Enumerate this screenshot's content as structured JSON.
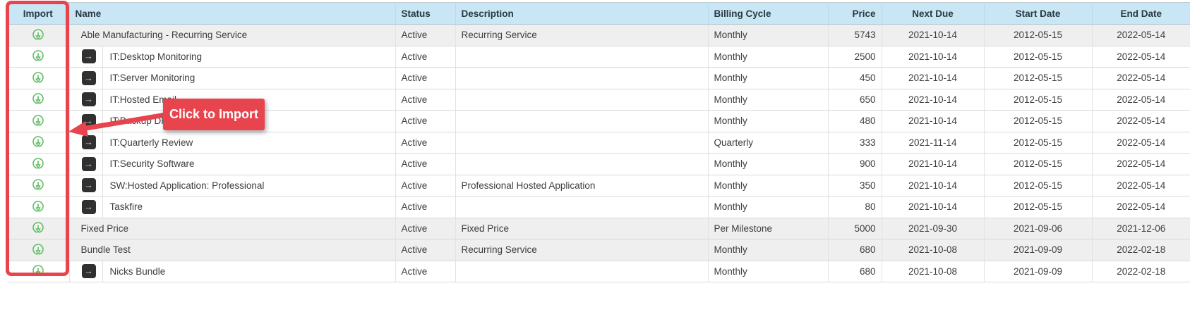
{
  "annotation": {
    "tooltip_label": "Click to Import"
  },
  "colors": {
    "accent_red": "#e8444e",
    "import_icon_green": "#5cbb60",
    "header_blue": "#c8e6f4",
    "parent_row_gray": "#efefef"
  },
  "icons": {
    "import_icon": "download-circle-icon",
    "child_row_icon": "arrow-right-square-icon"
  },
  "table": {
    "columns": [
      {
        "key": "import",
        "label": "Import",
        "align": "ac"
      },
      {
        "key": "name",
        "label": "Name",
        "align": "al"
      },
      {
        "key": "status",
        "label": "Status",
        "align": "al"
      },
      {
        "key": "description",
        "label": "Description",
        "align": "al"
      },
      {
        "key": "billing_cycle",
        "label": "Billing Cycle",
        "align": "al"
      },
      {
        "key": "price",
        "label": "Price",
        "align": "ar"
      },
      {
        "key": "next_due",
        "label": "Next Due",
        "align": "ac"
      },
      {
        "key": "start_date",
        "label": "Start Date",
        "align": "ac"
      },
      {
        "key": "end_date",
        "label": "End Date",
        "align": "ac"
      }
    ],
    "rows": [
      {
        "type": "parent",
        "name": "Able Manufacturing - Recurring Service",
        "status": "Active",
        "description": "Recurring Service",
        "billing_cycle": "Monthly",
        "price": "5743",
        "next_due": "2021-10-14",
        "start_date": "2012-05-15",
        "end_date": "2022-05-14"
      },
      {
        "type": "child",
        "name": "IT:Desktop Monitoring",
        "status": "Active",
        "description": "",
        "billing_cycle": "Monthly",
        "price": "2500",
        "next_due": "2021-10-14",
        "start_date": "2012-05-15",
        "end_date": "2022-05-14"
      },
      {
        "type": "child",
        "name": "IT:Server Monitoring",
        "status": "Active",
        "description": "",
        "billing_cycle": "Monthly",
        "price": "450",
        "next_due": "2021-10-14",
        "start_date": "2012-05-15",
        "end_date": "2022-05-14"
      },
      {
        "type": "child",
        "name": "IT:Hosted Email",
        "status": "Active",
        "description": "",
        "billing_cycle": "Monthly",
        "price": "650",
        "next_due": "2021-10-14",
        "start_date": "2012-05-15",
        "end_date": "2022-05-14"
      },
      {
        "type": "child",
        "name": "IT:Backup DR",
        "status": "Active",
        "description": "",
        "billing_cycle": "Monthly",
        "price": "480",
        "next_due": "2021-10-14",
        "start_date": "2012-05-15",
        "end_date": "2022-05-14"
      },
      {
        "type": "child",
        "name": "IT:Quarterly Review",
        "status": "Active",
        "description": "",
        "billing_cycle": "Quarterly",
        "price": "333",
        "next_due": "2021-11-14",
        "start_date": "2012-05-15",
        "end_date": "2022-05-14"
      },
      {
        "type": "child",
        "name": "IT:Security Software",
        "status": "Active",
        "description": "",
        "billing_cycle": "Monthly",
        "price": "900",
        "next_due": "2021-10-14",
        "start_date": "2012-05-15",
        "end_date": "2022-05-14"
      },
      {
        "type": "child",
        "name": "SW:Hosted Application: Professional",
        "status": "Active",
        "description": "Professional Hosted Application",
        "billing_cycle": "Monthly",
        "price": "350",
        "next_due": "2021-10-14",
        "start_date": "2012-05-15",
        "end_date": "2022-05-14"
      },
      {
        "type": "child",
        "name": "Taskfire",
        "status": "Active",
        "description": "",
        "billing_cycle": "Monthly",
        "price": "80",
        "next_due": "2021-10-14",
        "start_date": "2012-05-15",
        "end_date": "2022-05-14"
      },
      {
        "type": "parent",
        "name": "Fixed Price",
        "status": "Active",
        "description": "Fixed Price",
        "billing_cycle": "Per Milestone",
        "price": "5000",
        "next_due": "2021-09-30",
        "start_date": "2021-09-06",
        "end_date": "2021-12-06"
      },
      {
        "type": "parent",
        "name": "Bundle Test",
        "status": "Active",
        "description": "Recurring Service",
        "billing_cycle": "Monthly",
        "price": "680",
        "next_due": "2021-10-08",
        "start_date": "2021-09-09",
        "end_date": "2022-02-18"
      },
      {
        "type": "child",
        "name": "Nicks Bundle",
        "status": "Active",
        "description": "",
        "billing_cycle": "Monthly",
        "price": "680",
        "next_due": "2021-10-08",
        "start_date": "2021-09-09",
        "end_date": "2022-02-18"
      }
    ]
  }
}
